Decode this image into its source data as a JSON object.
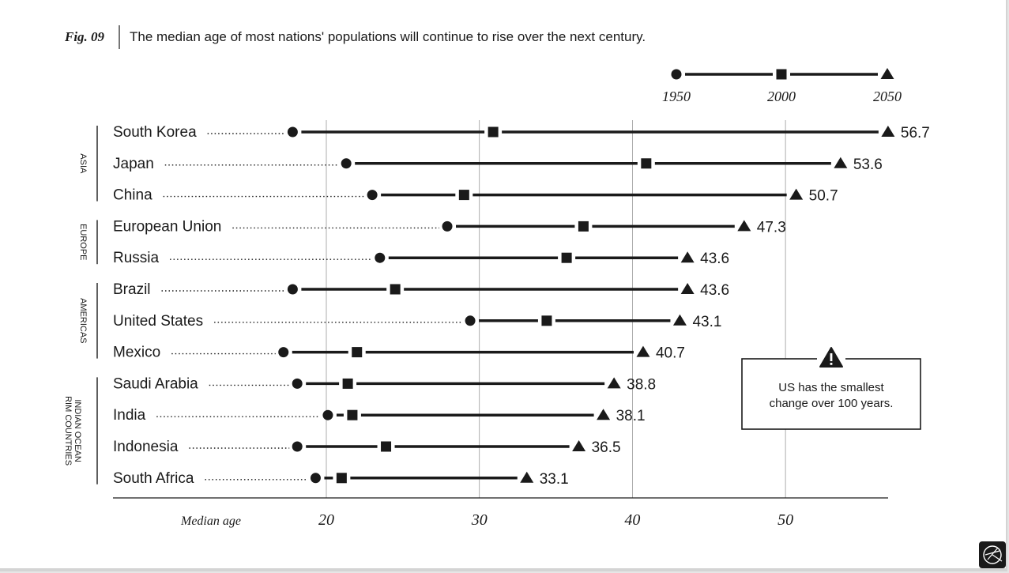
{
  "figure": {
    "label": "Fig. 09",
    "caption": "The median age of most nations' populations will continue to rise over the next century."
  },
  "colors": {
    "ink": "#1a1a1a",
    "grid": "#9a9a9a",
    "background": "#ffffff"
  },
  "legend": {
    "items": [
      {
        "label": "1950",
        "marker": "circle"
      },
      {
        "label": "2000",
        "marker": "square"
      },
      {
        "label": "2050",
        "marker": "triangle"
      }
    ]
  },
  "annotation": {
    "icon": "warning-icon",
    "text_line1": "US has the smallest",
    "text_line2": "change over 100 years."
  },
  "chart_data": {
    "type": "dot-range",
    "xlabel": "Median age",
    "xlim": [
      13.9,
      57.0
    ],
    "xticks": [
      20,
      30,
      40,
      50
    ],
    "grid": true,
    "legend_placement": "top-right",
    "groups": [
      {
        "name": "ASIA",
        "rows": [
          0,
          1,
          2
        ]
      },
      {
        "name": "EUROPE",
        "rows": [
          3,
          4
        ]
      },
      {
        "name": "AMERICAS",
        "rows": [
          5,
          6,
          7
        ]
      },
      {
        "name": "INDIAN OCEAN RIM COUNTRIES",
        "name_line1": "INDIAN OCEAN",
        "name_line2": "RIM COUNTRIES",
        "rows": [
          8,
          9,
          10,
          11
        ]
      }
    ],
    "countries": [
      {
        "name": "South Korea",
        "y1950": 17.8,
        "y2000": 30.9,
        "y2050": 56.7,
        "label": "56.7"
      },
      {
        "name": "Japan",
        "y1950": 21.3,
        "y2000": 40.9,
        "y2050": 53.6,
        "label": "53.6"
      },
      {
        "name": "China",
        "y1950": 23.0,
        "y2000": 29.0,
        "y2050": 50.7,
        "label": "50.7"
      },
      {
        "name": "European Union",
        "y1950": 27.9,
        "y2000": 36.8,
        "y2050": 47.3,
        "label": "47.3"
      },
      {
        "name": "Russia",
        "y1950": 23.5,
        "y2000": 35.7,
        "y2050": 43.6,
        "label": "43.6"
      },
      {
        "name": "Brazil",
        "y1950": 17.8,
        "y2000": 24.5,
        "y2050": 43.6,
        "label": "43.6"
      },
      {
        "name": "United States",
        "y1950": 29.4,
        "y2000": 34.4,
        "y2050": 43.1,
        "label": "43.1"
      },
      {
        "name": "Mexico",
        "y1950": 17.2,
        "y2000": 22.0,
        "y2050": 40.7,
        "label": "40.7"
      },
      {
        "name": "Saudi Arabia",
        "y1950": 18.1,
        "y2000": 21.4,
        "y2050": 38.8,
        "label": "38.8"
      },
      {
        "name": "India",
        "y1950": 20.1,
        "y2000": 21.7,
        "y2050": 38.1,
        "label": "38.1"
      },
      {
        "name": "Indonesia",
        "y1950": 18.1,
        "y2000": 23.9,
        "y2050": 36.5,
        "label": "36.5"
      },
      {
        "name": "South Africa",
        "y1950": 19.3,
        "y2000": 21.0,
        "y2050": 33.1,
        "label": "33.1"
      }
    ]
  }
}
